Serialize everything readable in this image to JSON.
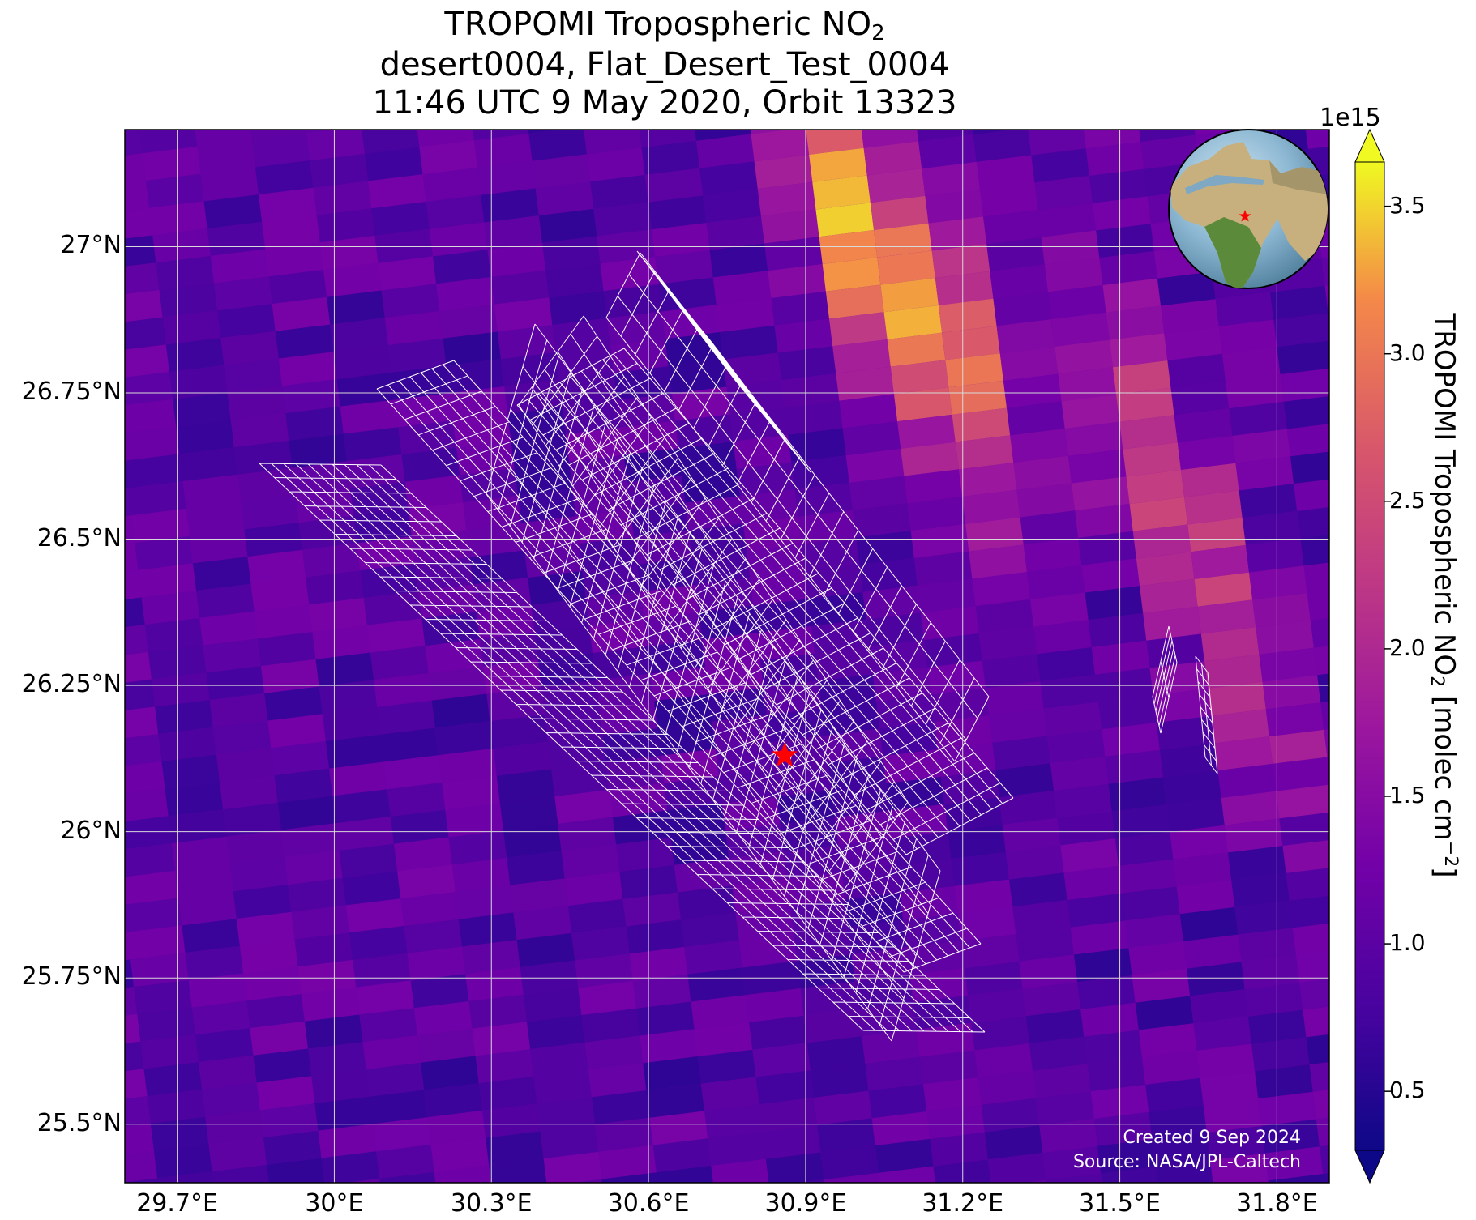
{
  "title": {
    "line1_prefix": "TROPOMI Tropospheric NO",
    "line1_sub": "2",
    "line2": "desert0004, Flat_Desert_Test_0004",
    "line3": "11:46 UTC 9 May 2020, Orbit 13323"
  },
  "axes": {
    "lat_labels": [
      "27°N",
      "26.75°N",
      "26.5°N",
      "26.25°N",
      "26°N",
      "25.75°N",
      "25.5°N"
    ],
    "lon_labels": [
      "29.7°E",
      "30°E",
      "30.3°E",
      "30.6°E",
      "30.9°E",
      "31.2°E",
      "31.5°E",
      "31.8°E"
    ]
  },
  "credits": {
    "created": "Created 9 Sep 2024",
    "source": "Source: NASA/JPL-Caltech"
  },
  "colorbar": {
    "exponent": "1e15",
    "ticks": [
      "0.5",
      "1.0",
      "1.5",
      "2.0",
      "2.5",
      "3.0",
      "3.5"
    ],
    "label_prefix": "TROPOMI Tropospheric NO",
    "label_sub": "2",
    "label_mid": " [molec cm",
    "label_sup": "−2",
    "label_suffix": "]",
    "colormap": "plasma",
    "extend": "both"
  },
  "chart_data": {
    "type": "heatmap",
    "projection": "lat-lon",
    "lon_range": [
      29.6,
      31.9
    ],
    "lat_range": [
      25.4,
      27.2
    ],
    "lat_ticks": [
      27.0,
      26.75,
      26.5,
      26.25,
      26.0,
      25.75,
      25.5
    ],
    "lon_ticks": [
      29.7,
      30.0,
      30.3,
      30.6,
      30.9,
      31.2,
      31.5,
      31.8
    ],
    "value_range": [
      0.3,
      3.65
    ],
    "value_scale": "1e15 molec cm^-2",
    "grid": true,
    "site_marker": {
      "lat": 26.13,
      "lon": 30.86,
      "symbol": "red star"
    },
    "inset_globe": {
      "position": "top-right",
      "marker": "red star"
    },
    "hotspots": [
      {
        "lat": 27.0,
        "lon": 31.0,
        "value": 3.6
      },
      {
        "lat": 26.8,
        "lon": 31.2,
        "value": 2.7
      },
      {
        "lat": 26.65,
        "lon": 31.55,
        "value": 2.4
      },
      {
        "lat": 26.3,
        "lon": 31.75,
        "value": 2.0
      }
    ]
  },
  "colors": {
    "site_marker": "#ff0000",
    "grid_lines": "#d9d9d9",
    "footprint_outline": "#ffffff"
  }
}
